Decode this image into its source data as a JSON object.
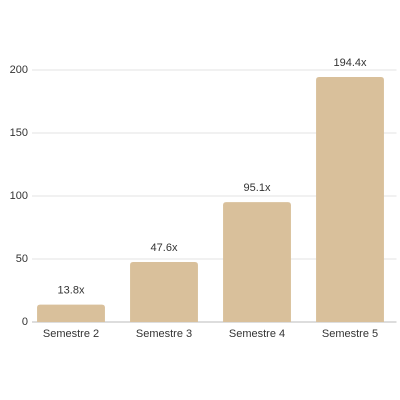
{
  "chart_data": {
    "type": "bar",
    "categories": [
      "Semestre 2",
      "Semestre 3",
      "Semestre 4",
      "Semestre 5"
    ],
    "values": [
      13.8,
      47.6,
      95.1,
      194.4
    ],
    "value_labels": [
      "13.8x",
      "47.6x",
      "95.1x",
      "194.4x"
    ],
    "color": "#d9c09b",
    "ylim": [
      0,
      200
    ],
    "yticks": [
      0,
      50,
      100,
      150,
      200
    ],
    "grid": true
  }
}
